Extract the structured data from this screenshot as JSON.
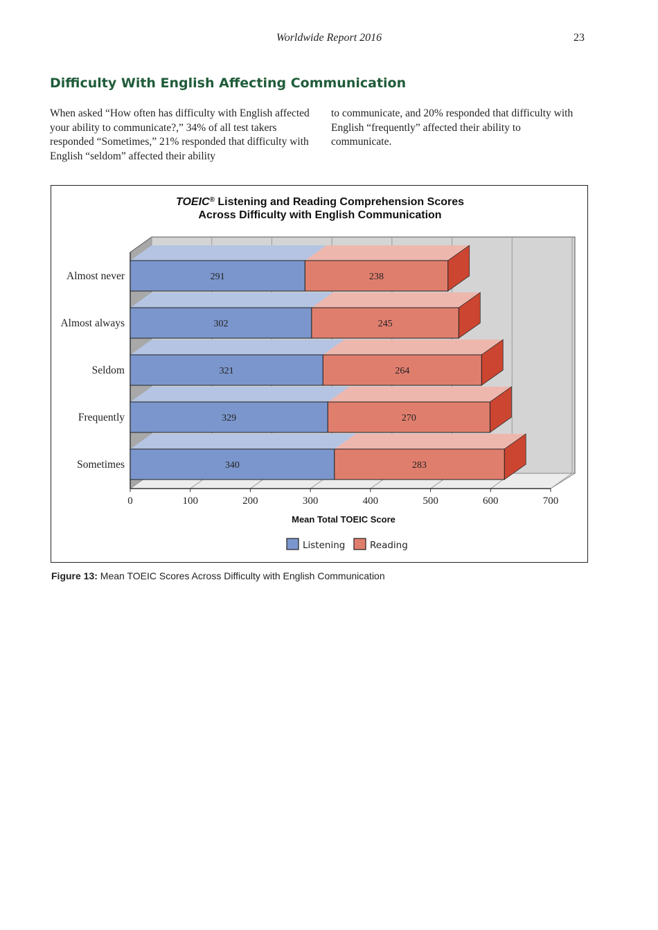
{
  "header": {
    "running_title": "Worldwide Report 2016",
    "page_number": "23"
  },
  "section_title": "Difficulty With English Affecting Communication",
  "body": {
    "col1": "When asked “How often has difficulty with English affected your ability to communicate?,” 34% of all test takers responded “Sometimes,” 21% responded that difficulty with English “seldom” affected their ability",
    "col2": "to communicate, and 20% responded that difficulty with English “frequently” affected their ability to communicate."
  },
  "chart_data": {
    "type": "bar",
    "orientation": "horizontal",
    "stacked": true,
    "three_d": true,
    "title_line1_italic": "TOEIC",
    "title_line1_mark": "®",
    "title_line1_rest": " Listening and Reading Comprehension Scores",
    "title_line2": "Across Difficulty with English Communication",
    "categories": [
      "Almost never",
      "Almost always",
      "Seldom",
      "Frequently",
      "Sometimes"
    ],
    "series": [
      {
        "name": "Listening",
        "values": [
          291,
          302,
          321,
          329,
          340
        ],
        "color": "#7b96cc"
      },
      {
        "name": "Reading",
        "values": [
          238,
          245,
          264,
          270,
          283
        ],
        "color": "#e07e6e"
      }
    ],
    "xlabel": "Mean Total TOEIC Score",
    "xlim": [
      0,
      700
    ],
    "xticks": [
      0,
      100,
      200,
      300,
      400,
      500,
      600,
      700
    ],
    "grid": true,
    "legend": "bottom"
  },
  "caption": {
    "label": "Figure 13:",
    "text": " Mean TOEIC Scores Across Difficulty with English Communication"
  }
}
